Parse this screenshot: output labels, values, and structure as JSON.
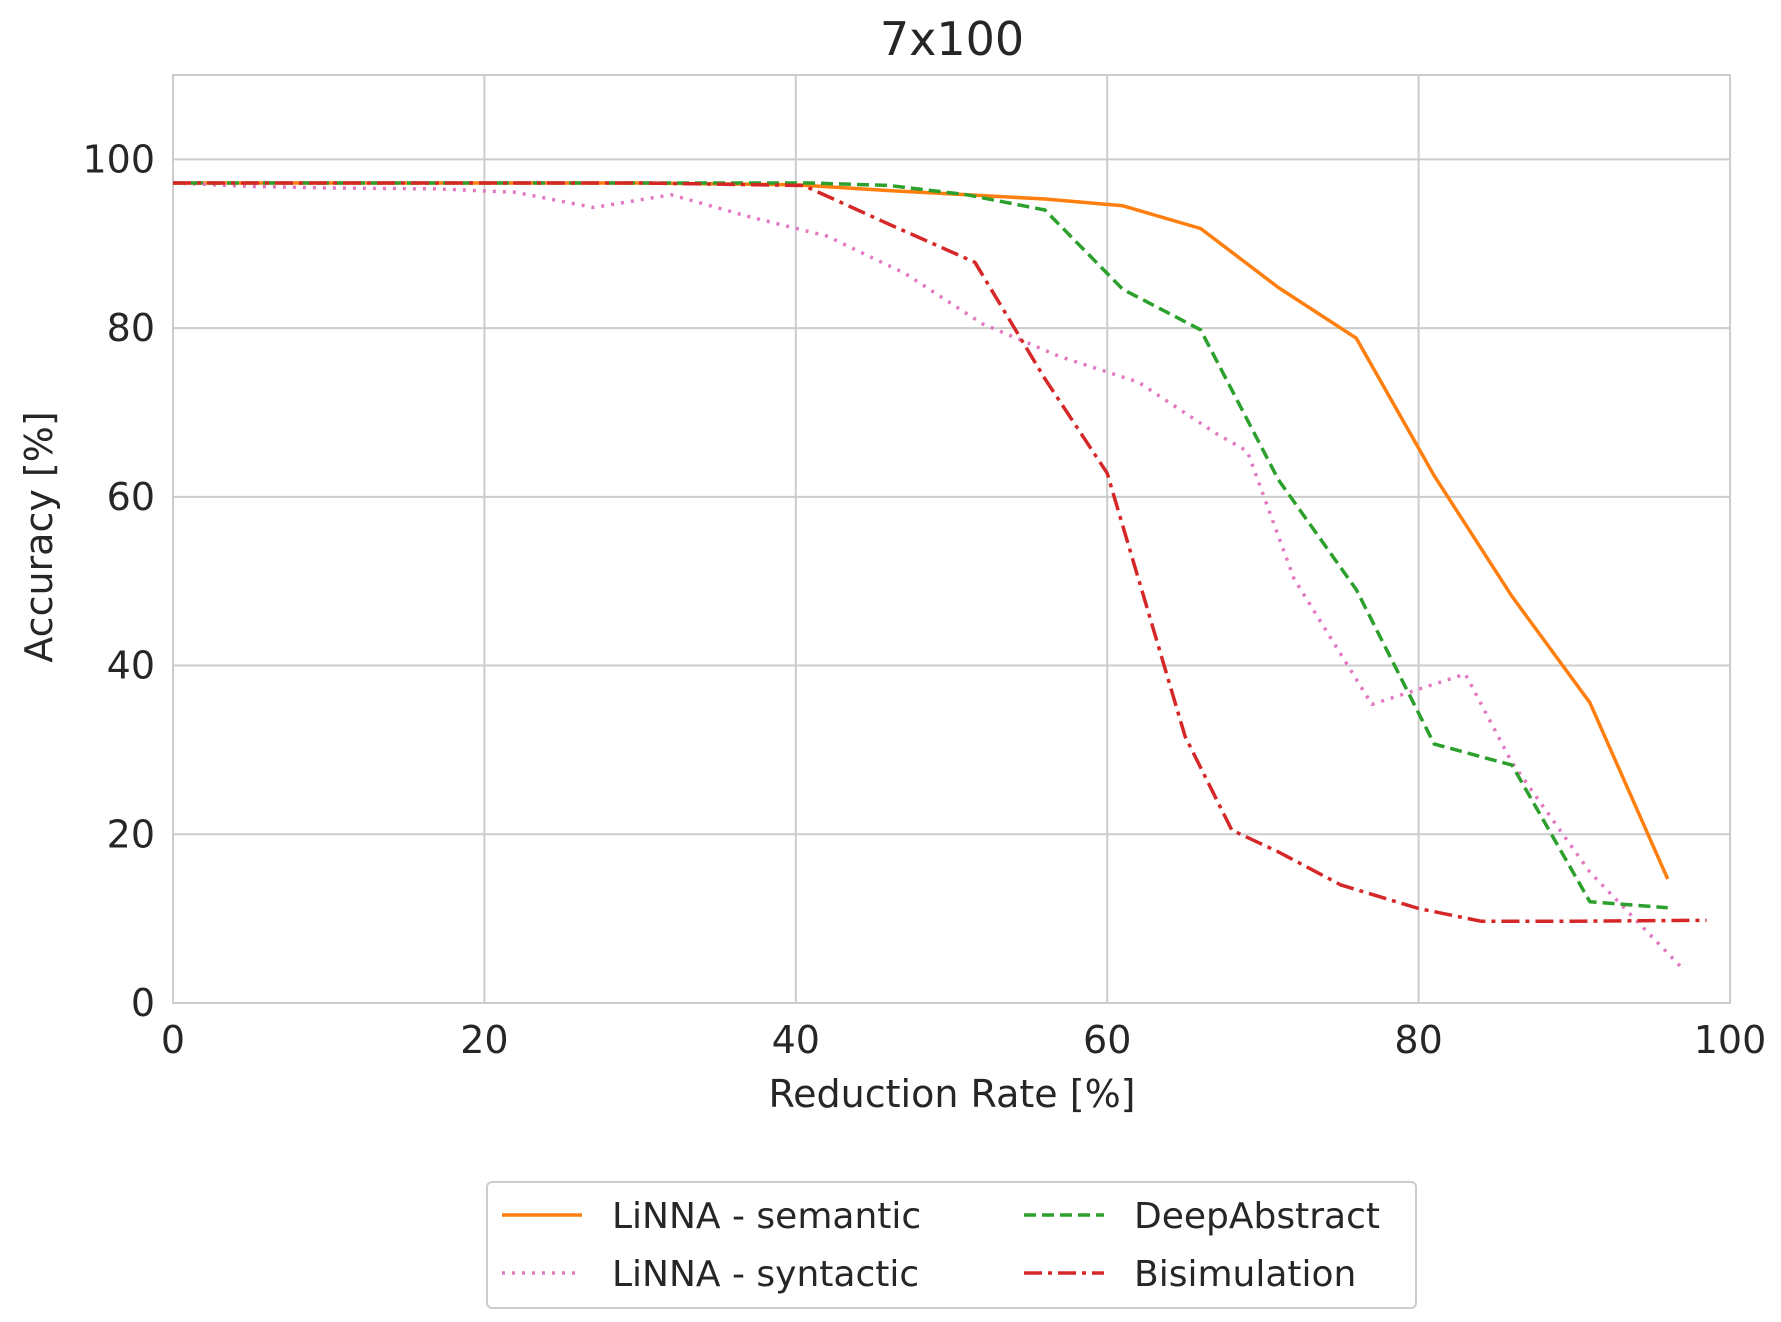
{
  "chart_data": {
    "type": "line",
    "title": "7x100",
    "xlabel": "Reduction Rate [%]",
    "ylabel": "Accuracy [%]",
    "xlim": [
      0,
      100
    ],
    "ylim": [
      0,
      110
    ],
    "xticks": [
      0,
      20,
      40,
      60,
      80,
      100
    ],
    "yticks": [
      0,
      20,
      40,
      60,
      80,
      100
    ],
    "grid": true,
    "legend_position": "bottom-center",
    "series": [
      {
        "name": "LiNNA - semantic",
        "color": "#ff7f0e",
        "style": "solid",
        "x": [
          0,
          5,
          10,
          20,
          30,
          40,
          46,
          51,
          56,
          61,
          66,
          71,
          76,
          81,
          86,
          91,
          96
        ],
        "y": [
          97.2,
          97.2,
          97.2,
          97.2,
          97.2,
          97.0,
          96.3,
          95.8,
          95.3,
          94.5,
          91.8,
          84.8,
          78.8,
          62.5,
          48.2,
          35.6,
          14.7
        ]
      },
      {
        "name": "LiNNA - syntactic",
        "color": "#e377c2",
        "style": "dotted",
        "x": [
          0,
          5,
          10,
          17,
          22,
          27,
          32,
          37,
          42,
          47,
          52,
          57,
          62,
          67,
          69,
          72,
          77,
          83,
          86,
          91,
          97
        ],
        "y": [
          97.2,
          96.8,
          96.6,
          96.5,
          96.1,
          94.3,
          95.8,
          93.2,
          90.9,
          86.5,
          80.5,
          76.6,
          73.6,
          67.5,
          65.4,
          50.3,
          35.4,
          39.0,
          28.5,
          15.5,
          4.0
        ]
      },
      {
        "name": "DeepAbstract",
        "color": "#2ca02c",
        "style": "dashed",
        "x": [
          0,
          10,
          20,
          30,
          41,
          46,
          51,
          56,
          61,
          66,
          71,
          76,
          81,
          86,
          91,
          96
        ],
        "y": [
          97.2,
          97.2,
          97.2,
          97.2,
          97.2,
          96.9,
          95.8,
          94.0,
          84.6,
          79.8,
          62.0,
          49.0,
          30.7,
          28.2,
          12.0,
          11.3
        ]
      },
      {
        "name": "Bisimulation",
        "color": "#d62728",
        "style": "dashdot",
        "x": [
          0,
          10,
          20,
          30,
          40.5,
          46,
          51.5,
          56,
          60,
          65,
          68,
          71,
          75,
          80,
          84,
          90,
          98.5
        ],
        "y": [
          97.2,
          97.2,
          97.2,
          97.2,
          96.9,
          92.3,
          87.8,
          74.0,
          62.8,
          31.6,
          20.5,
          17.9,
          14.0,
          11.2,
          9.7,
          9.7,
          9.8
        ]
      }
    ]
  }
}
